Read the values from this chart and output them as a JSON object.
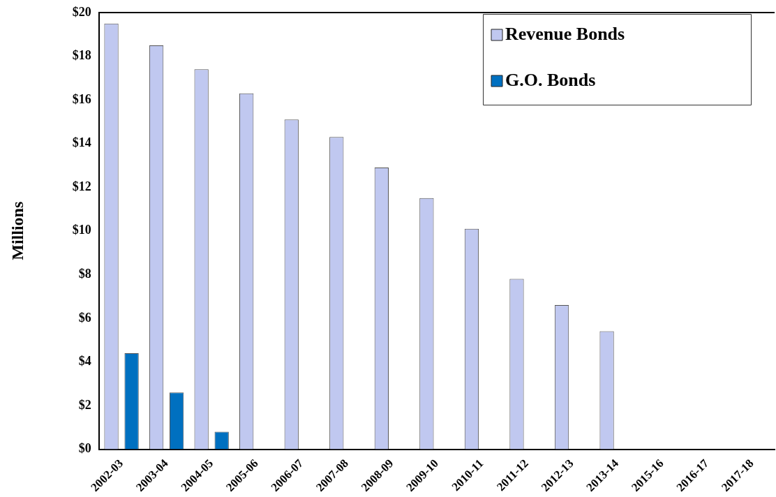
{
  "chart_data": {
    "type": "bar",
    "ylabel": "Millions",
    "categories": [
      "2002-03",
      "2003-04",
      "2004-05",
      "2005-06",
      "2006-07",
      "2007-08",
      "2008-09",
      "2009-10",
      "2010-11",
      "2011-12",
      "2012-13",
      "2013-14",
      "2015-16",
      "2016-17",
      "2017-18"
    ],
    "series": [
      {
        "name": "Revenue Bonds",
        "color": "#c0c8f0",
        "values": [
          19.5,
          18.5,
          17.4,
          16.3,
          15.1,
          14.3,
          12.9,
          11.5,
          10.1,
          7.8,
          6.6,
          5.4,
          0,
          0,
          0
        ]
      },
      {
        "name": "G.O. Bonds",
        "color": "#0070c0",
        "values": [
          4.4,
          2.6,
          0.8,
          0,
          0,
          0,
          0,
          0,
          0,
          0,
          0,
          0,
          0,
          0,
          0
        ]
      }
    ],
    "ylim": [
      0,
      20
    ],
    "yticks": [
      {
        "value": 0,
        "label": "$0"
      },
      {
        "value": 2,
        "label": "$2"
      },
      {
        "value": 4,
        "label": "$4"
      },
      {
        "value": 6,
        "label": "$6"
      },
      {
        "value": 8,
        "label": "$8"
      },
      {
        "value": 10,
        "label": "$10"
      },
      {
        "value": 12,
        "label": "$12"
      },
      {
        "value": 14,
        "label": "$14"
      },
      {
        "value": 16,
        "label": "$16"
      },
      {
        "value": 18,
        "label": "$18"
      },
      {
        "value": 20,
        "label": "$20"
      }
    ],
    "grid": false,
    "legend": "top right"
  }
}
